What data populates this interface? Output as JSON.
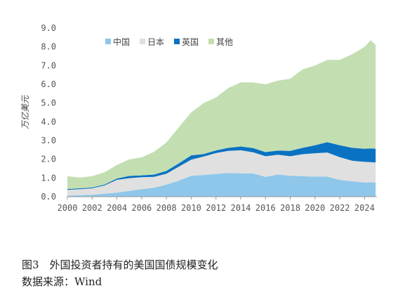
{
  "caption": {
    "title": "图3　外国投资者持有的美国国债规模变化",
    "source": "数据来源：Wind"
  },
  "chart_data": {
    "type": "area",
    "stacked": true,
    "title": "",
    "xlabel": "",
    "ylabel": "万亿美元",
    "ylim": [
      0,
      9
    ],
    "xlim": [
      2000,
      2025
    ],
    "y_ticks": [
      "0.0",
      "1.0",
      "2.0",
      "3.0",
      "4.0",
      "5.0",
      "6.0",
      "7.0",
      "8.0",
      "9.0"
    ],
    "x_ticks": [
      "2000",
      "2002",
      "2004",
      "2006",
      "2008",
      "2010",
      "2012",
      "2014",
      "2016",
      "2018",
      "2020",
      "2022",
      "2024"
    ],
    "legend_position": "top-left",
    "grid": false,
    "x": [
      2000,
      2001,
      2002,
      2003,
      2004,
      2005,
      2006,
      2007,
      2008,
      2009,
      2010,
      2011,
      2012,
      2013,
      2014,
      2015,
      2016,
      2017,
      2018,
      2019,
      2020,
      2021,
      2022,
      2023,
      2024,
      2024.5,
      2024.9
    ],
    "series": [
      {
        "name": "中国",
        "color": "#8ec7ea",
        "values": [
          0.06,
          0.08,
          0.1,
          0.16,
          0.22,
          0.31,
          0.4,
          0.48,
          0.65,
          0.85,
          1.12,
          1.16,
          1.22,
          1.27,
          1.25,
          1.25,
          1.06,
          1.18,
          1.12,
          1.1,
          1.07,
          1.07,
          0.9,
          0.82,
          0.76,
          0.77,
          0.76
        ]
      },
      {
        "name": "日本",
        "color": "#e0e0e0",
        "values": [
          0.3,
          0.32,
          0.35,
          0.44,
          0.68,
          0.68,
          0.64,
          0.58,
          0.58,
          0.75,
          0.86,
          0.98,
          1.11,
          1.18,
          1.23,
          1.12,
          1.1,
          1.06,
          1.04,
          1.17,
          1.25,
          1.29,
          1.21,
          1.1,
          1.1,
          1.08,
          1.07
        ]
      },
      {
        "name": "英国",
        "color": "#0a72c2",
        "values": [
          0.05,
          0.05,
          0.04,
          0.05,
          0.07,
          0.12,
          0.1,
          0.12,
          0.15,
          0.18,
          0.23,
          0.14,
          0.14,
          0.16,
          0.2,
          0.23,
          0.22,
          0.22,
          0.29,
          0.34,
          0.43,
          0.55,
          0.64,
          0.69,
          0.7,
          0.73,
          0.73
        ]
      },
      {
        "name": "其他",
        "color": "#c3dfb2",
        "values": [
          0.69,
          0.57,
          0.61,
          0.65,
          0.73,
          0.89,
          0.96,
          1.22,
          1.52,
          1.92,
          2.29,
          2.72,
          2.83,
          3.19,
          3.42,
          3.5,
          3.62,
          3.74,
          3.85,
          4.19,
          4.25,
          4.39,
          4.55,
          4.99,
          5.44,
          5.77,
          5.54
        ]
      }
    ]
  }
}
